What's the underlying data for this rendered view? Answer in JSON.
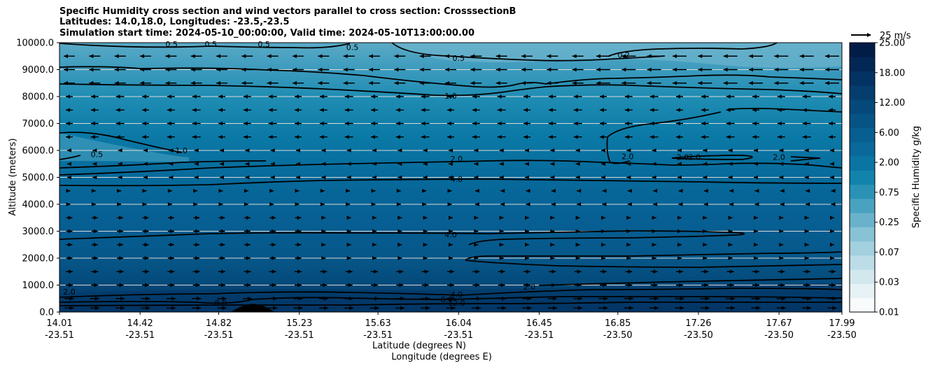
{
  "chart_data": {
    "type": "contour",
    "title_lines": [
      "Specific Humidity cross section and wind vectors parallel to cross section: CrosssectionB",
      "Latitudes: 14.0,18.0, Longitudes: -23.5,-23.5",
      "Simulation start time: 2024-05-10_00:00:00, Valid time: 2024-05-10T13:00:00.00"
    ],
    "ylabel": "Altitude (meters)",
    "xlabel_lines": [
      "Latitude (degrees N)",
      "Longitude (degrees E)"
    ],
    "ylim": [
      0,
      10000
    ],
    "yticks": [
      "0.0",
      "1000.0",
      "2000.0",
      "3000.0",
      "4000.0",
      "5000.0",
      "6000.0",
      "7000.0",
      "8000.0",
      "9000.0",
      "10000.0"
    ],
    "xticks": [
      {
        "lat": "14.01",
        "lon": "-23.51"
      },
      {
        "lat": "14.42",
        "lon": "-23.51"
      },
      {
        "lat": "14.82",
        "lon": "-23.51"
      },
      {
        "lat": "15.23",
        "lon": "-23.51"
      },
      {
        "lat": "15.63",
        "lon": "-23.51"
      },
      {
        "lat": "16.04",
        "lon": "-23.51"
      },
      {
        "lat": "16.45",
        "lon": "-23.51"
      },
      {
        "lat": "16.85",
        "lon": "-23.50"
      },
      {
        "lat": "17.26",
        "lon": "-23.50"
      },
      {
        "lat": "17.67",
        "lon": "-23.50"
      },
      {
        "lat": "17.99",
        "lon": "-23.50"
      }
    ],
    "grid": "horizontal",
    "colorbar": {
      "label": "Specific Humidity g/kg",
      "tick_labels": [
        "0.01",
        "0.03",
        "0.07",
        "0.25",
        "0.75",
        "2.00",
        "6.00",
        "12.00",
        "18.00",
        "25.00"
      ],
      "colors": [
        "#f7fbfc",
        "#e6f2f5",
        "#d2e8ee",
        "#bcdde7",
        "#a3d0de",
        "#88c2d5",
        "#6ab2cb",
        "#4aa2c1",
        "#2b92b6",
        "#1284ac",
        "#0a75a3",
        "#08699a",
        "#075e90",
        "#065485",
        "#05497a",
        "#053e6e",
        "#043262",
        "#032755",
        "#021c48"
      ]
    },
    "quiver_key": {
      "label": "25 m/s",
      "value": 25
    },
    "contour_labels": [
      {
        "text": "0.5",
        "x_lat": 14.58,
        "z": 9950
      },
      {
        "text": "0.5",
        "x_lat": 14.78,
        "z": 9950
      },
      {
        "text": "0.5",
        "x_lat": 15.05,
        "z": 9950
      },
      {
        "text": "0.5",
        "x_lat": 15.5,
        "z": 9830
      },
      {
        "text": "0.5",
        "x_lat": 16.04,
        "z": 9430
      },
      {
        "text": "0.2",
        "x_lat": 16.88,
        "z": 9540
      },
      {
        "text": "1.0",
        "x_lat": 16.0,
        "z": 8030
      },
      {
        "text": "0.5",
        "x_lat": 14.2,
        "z": 5860
      },
      {
        "text": "1.0",
        "x_lat": 14.63,
        "z": 6000
      },
      {
        "text": "2.0",
        "x_lat": 16.03,
        "z": 5690
      },
      {
        "text": "2.0",
        "x_lat": 16.9,
        "z": 5780
      },
      {
        "text": "2.0",
        "x_lat": 17.18,
        "z": 5750
      },
      {
        "text": "2.0",
        "x_lat": 17.24,
        "z": 5750
      },
      {
        "text": "2.0",
        "x_lat": 17.67,
        "z": 5750
      },
      {
        "text": "4.0",
        "x_lat": 16.03,
        "z": 4940
      },
      {
        "text": "4.0",
        "x_lat": 16.0,
        "z": 2870
      },
      {
        "text": "2.0",
        "x_lat": 14.06,
        "z": 750
      },
      {
        "text": "2.0",
        "x_lat": 16.4,
        "z": 940
      },
      {
        "text": "4.0",
        "x_lat": 16.03,
        "z": 650
      },
      {
        "text": "8.0",
        "x_lat": 14.83,
        "z": 340
      },
      {
        "text": "8.0",
        "x_lat": 15.98,
        "z": 470
      },
      {
        "text": "12.0",
        "x_lat": 16.03,
        "z": 340
      }
    ]
  }
}
